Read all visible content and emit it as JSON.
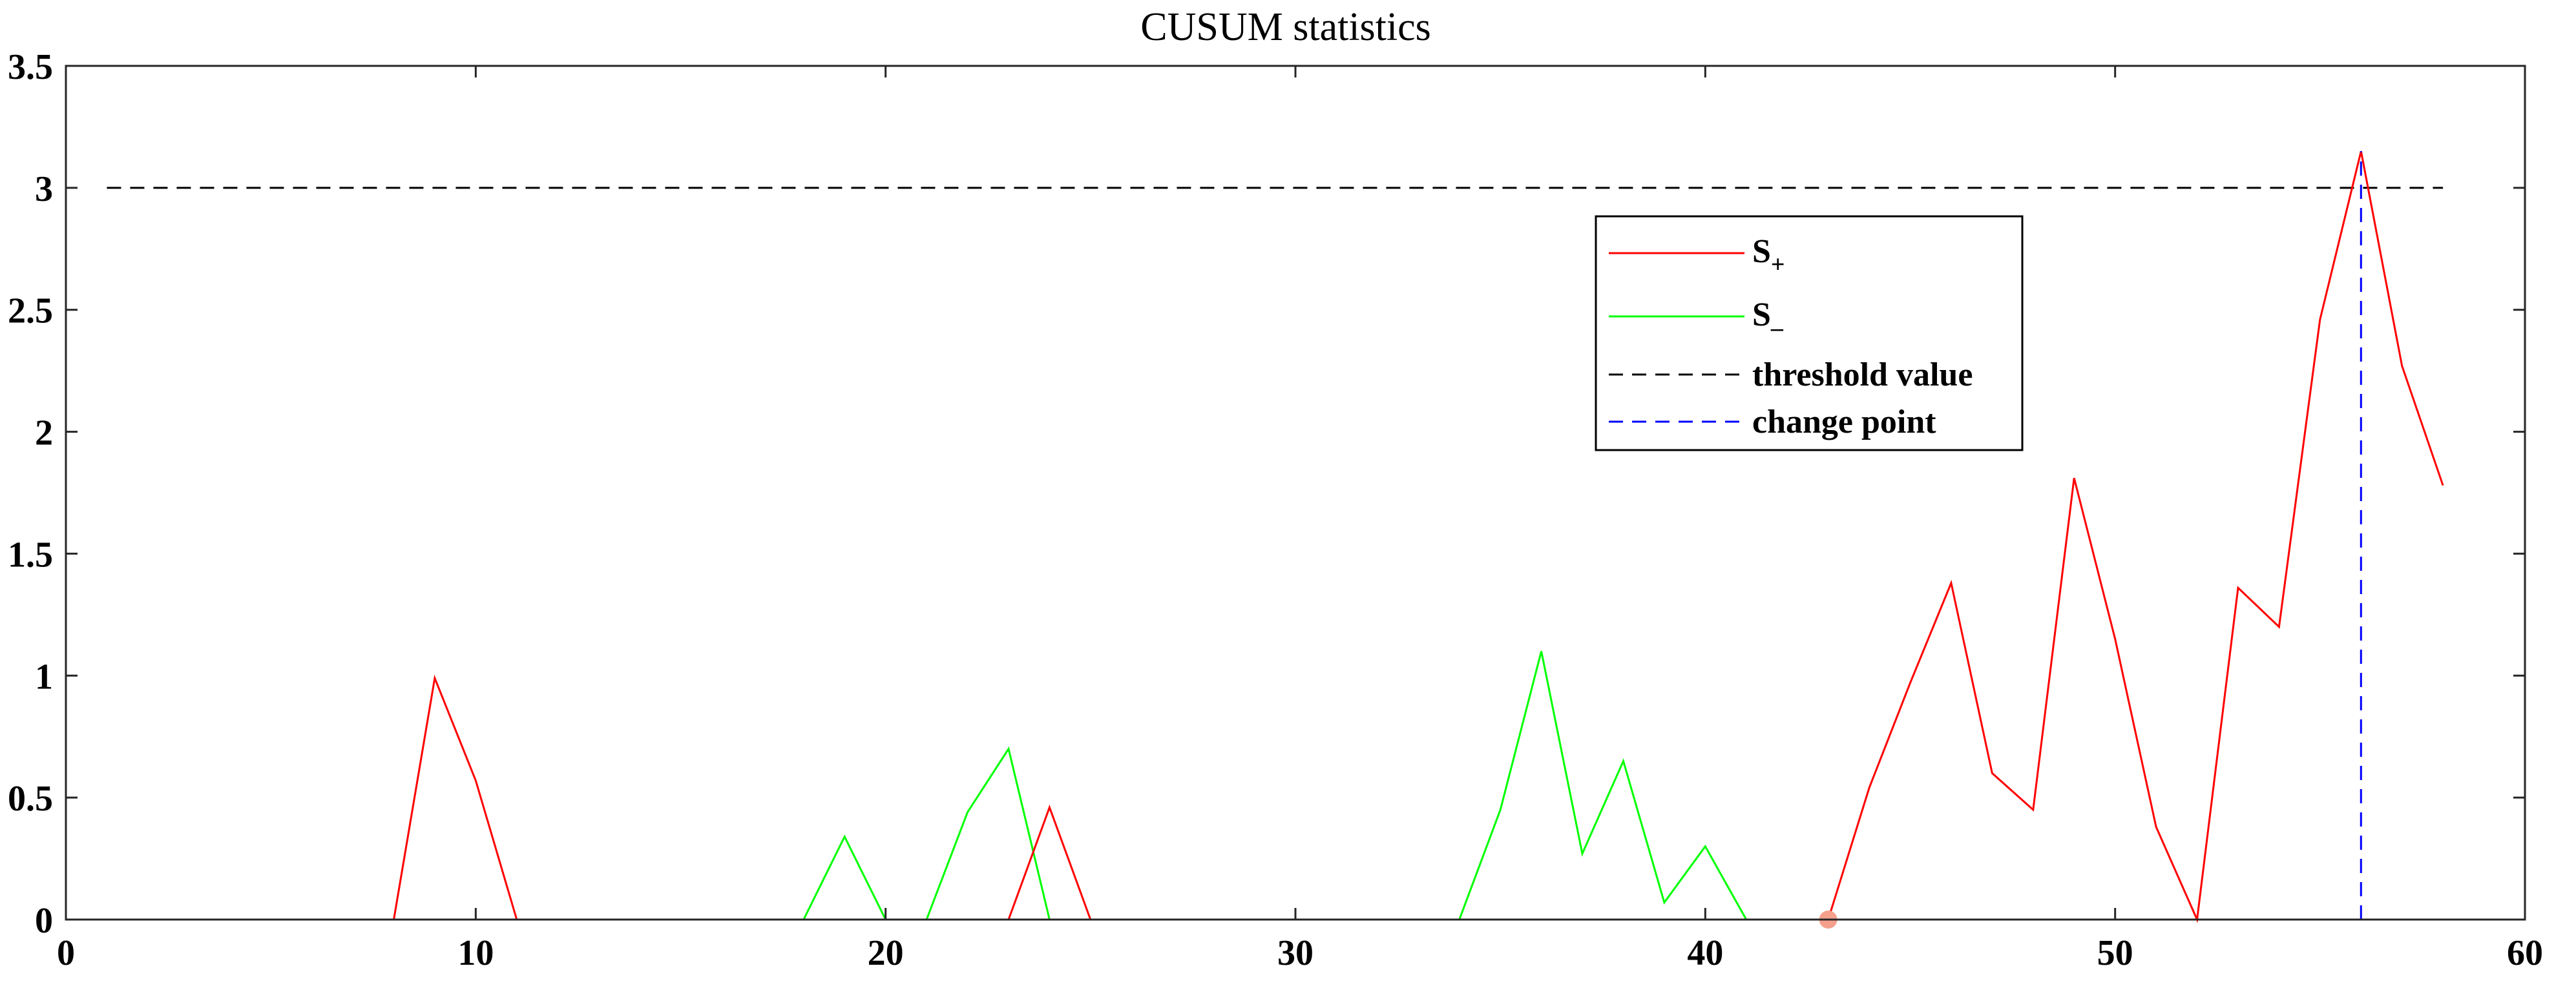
{
  "chart_data": {
    "type": "line",
    "title": "CUSUM statistics",
    "xlabel": "",
    "ylabel": "",
    "xlim": [
      0,
      60
    ],
    "ylim": [
      0,
      3.5
    ],
    "xticks": [
      0,
      10,
      20,
      30,
      40,
      50,
      60
    ],
    "yticks": [
      0,
      0.5,
      1,
      1.5,
      2,
      2.5,
      3,
      3.5
    ],
    "xtick_labels": [
      "0",
      "10",
      "20",
      "30",
      "40",
      "50",
      "60"
    ],
    "ytick_labels": [
      "0",
      "0.5",
      "1",
      "1.5",
      "2",
      "2.5",
      "3",
      "3.5"
    ],
    "grid": false,
    "legend_position": "top-right",
    "x": [
      1,
      2,
      3,
      4,
      5,
      6,
      7,
      8,
      9,
      10,
      11,
      12,
      13,
      14,
      15,
      16,
      17,
      18,
      19,
      20,
      21,
      22,
      23,
      24,
      25,
      26,
      27,
      28,
      29,
      30,
      31,
      32,
      33,
      34,
      35,
      36,
      37,
      38,
      39,
      40,
      41,
      42,
      43,
      44,
      45,
      46,
      47,
      48,
      49,
      50,
      51,
      52,
      53,
      54,
      55,
      56,
      57,
      58
    ],
    "series": [
      {
        "name": "S",
        "subscript": "+",
        "color": "#ff0000",
        "style": "solid",
        "values": [
          0,
          0,
          0,
          0,
          0,
          0,
          0,
          0,
          0.99,
          0.57,
          0,
          0,
          0,
          0,
          0,
          0,
          0,
          0,
          0,
          0,
          0,
          0,
          0,
          0.46,
          0,
          0,
          0,
          0,
          0,
          0,
          0,
          0,
          0,
          0,
          0,
          0,
          0,
          0,
          0,
          0,
          0,
          0,
          0,
          0.54,
          0.97,
          1.38,
          0.6,
          0.45,
          1.81,
          1.15,
          0.38,
          0,
          1.36,
          1.2,
          2.46,
          3.15,
          2.27,
          1.78
        ]
      },
      {
        "name": "S",
        "subscript": "–",
        "color": "#00ff00",
        "style": "solid",
        "values": [
          0,
          0,
          0,
          0,
          0,
          0,
          0,
          0,
          0,
          0,
          0,
          0,
          0,
          0,
          0,
          0,
          0,
          0,
          0.34,
          0,
          0,
          0.44,
          0.7,
          0,
          0,
          0,
          0,
          0,
          0,
          0,
          0,
          0,
          0,
          0,
          0.45,
          1.1,
          0.27,
          0.65,
          0.07,
          0.3,
          0,
          0,
          0,
          0,
          0,
          0,
          0,
          0,
          0,
          0,
          0,
          0,
          0,
          0,
          0,
          0,
          0,
          0
        ]
      }
    ],
    "threshold": {
      "name": "threshold value",
      "value": 3,
      "x_range": [
        1,
        58
      ],
      "color": "#000000",
      "style": "dashed"
    },
    "change_point": {
      "name": "change point",
      "x": 56,
      "y_range": [
        0,
        3.15
      ],
      "color": "#0000ff",
      "style": "dashed"
    },
    "marker": {
      "x": 43,
      "y": 0,
      "color": "#f4a08c"
    }
  }
}
